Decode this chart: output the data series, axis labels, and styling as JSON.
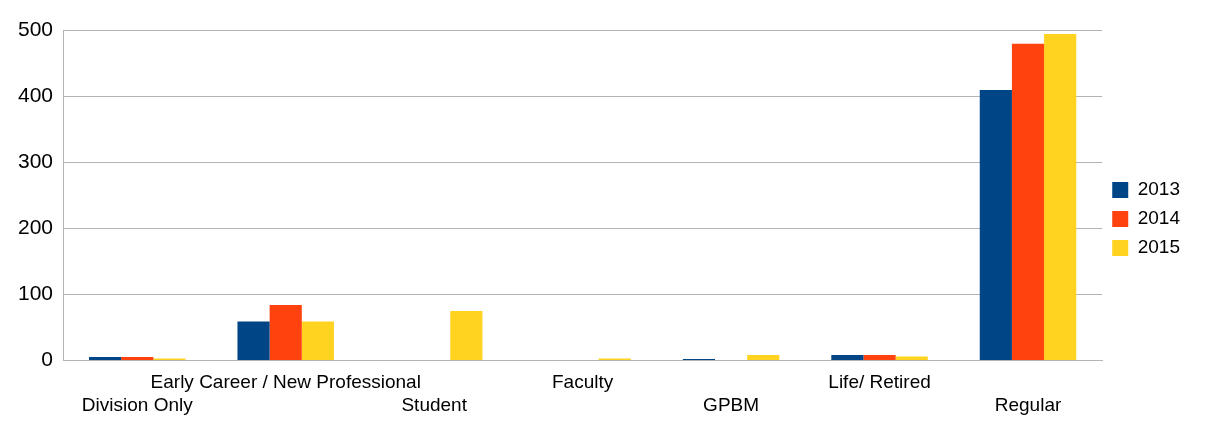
{
  "chart_data": {
    "type": "bar",
    "categories": [
      "Division Only",
      "Early Career / New Professional",
      "Student",
      "Faculty",
      "GPBM",
      "Life/ Retired",
      "Regular"
    ],
    "series": [
      {
        "name": "2013",
        "color": "#004586",
        "values": [
          5,
          59,
          null,
          null,
          2,
          8,
          410
        ]
      },
      {
        "name": "2014",
        "color": "#ff420e",
        "values": [
          5,
          84,
          null,
          null,
          null,
          8,
          480
        ]
      },
      {
        "name": "2015",
        "color": "#ffd320",
        "values": [
          3,
          59,
          75,
          3,
          8,
          6,
          495
        ]
      }
    ],
    "ylim": [
      0,
      500
    ],
    "yticks": [
      0,
      100,
      200,
      300,
      400,
      500
    ],
    "grid": "y",
    "legend": "right"
  }
}
